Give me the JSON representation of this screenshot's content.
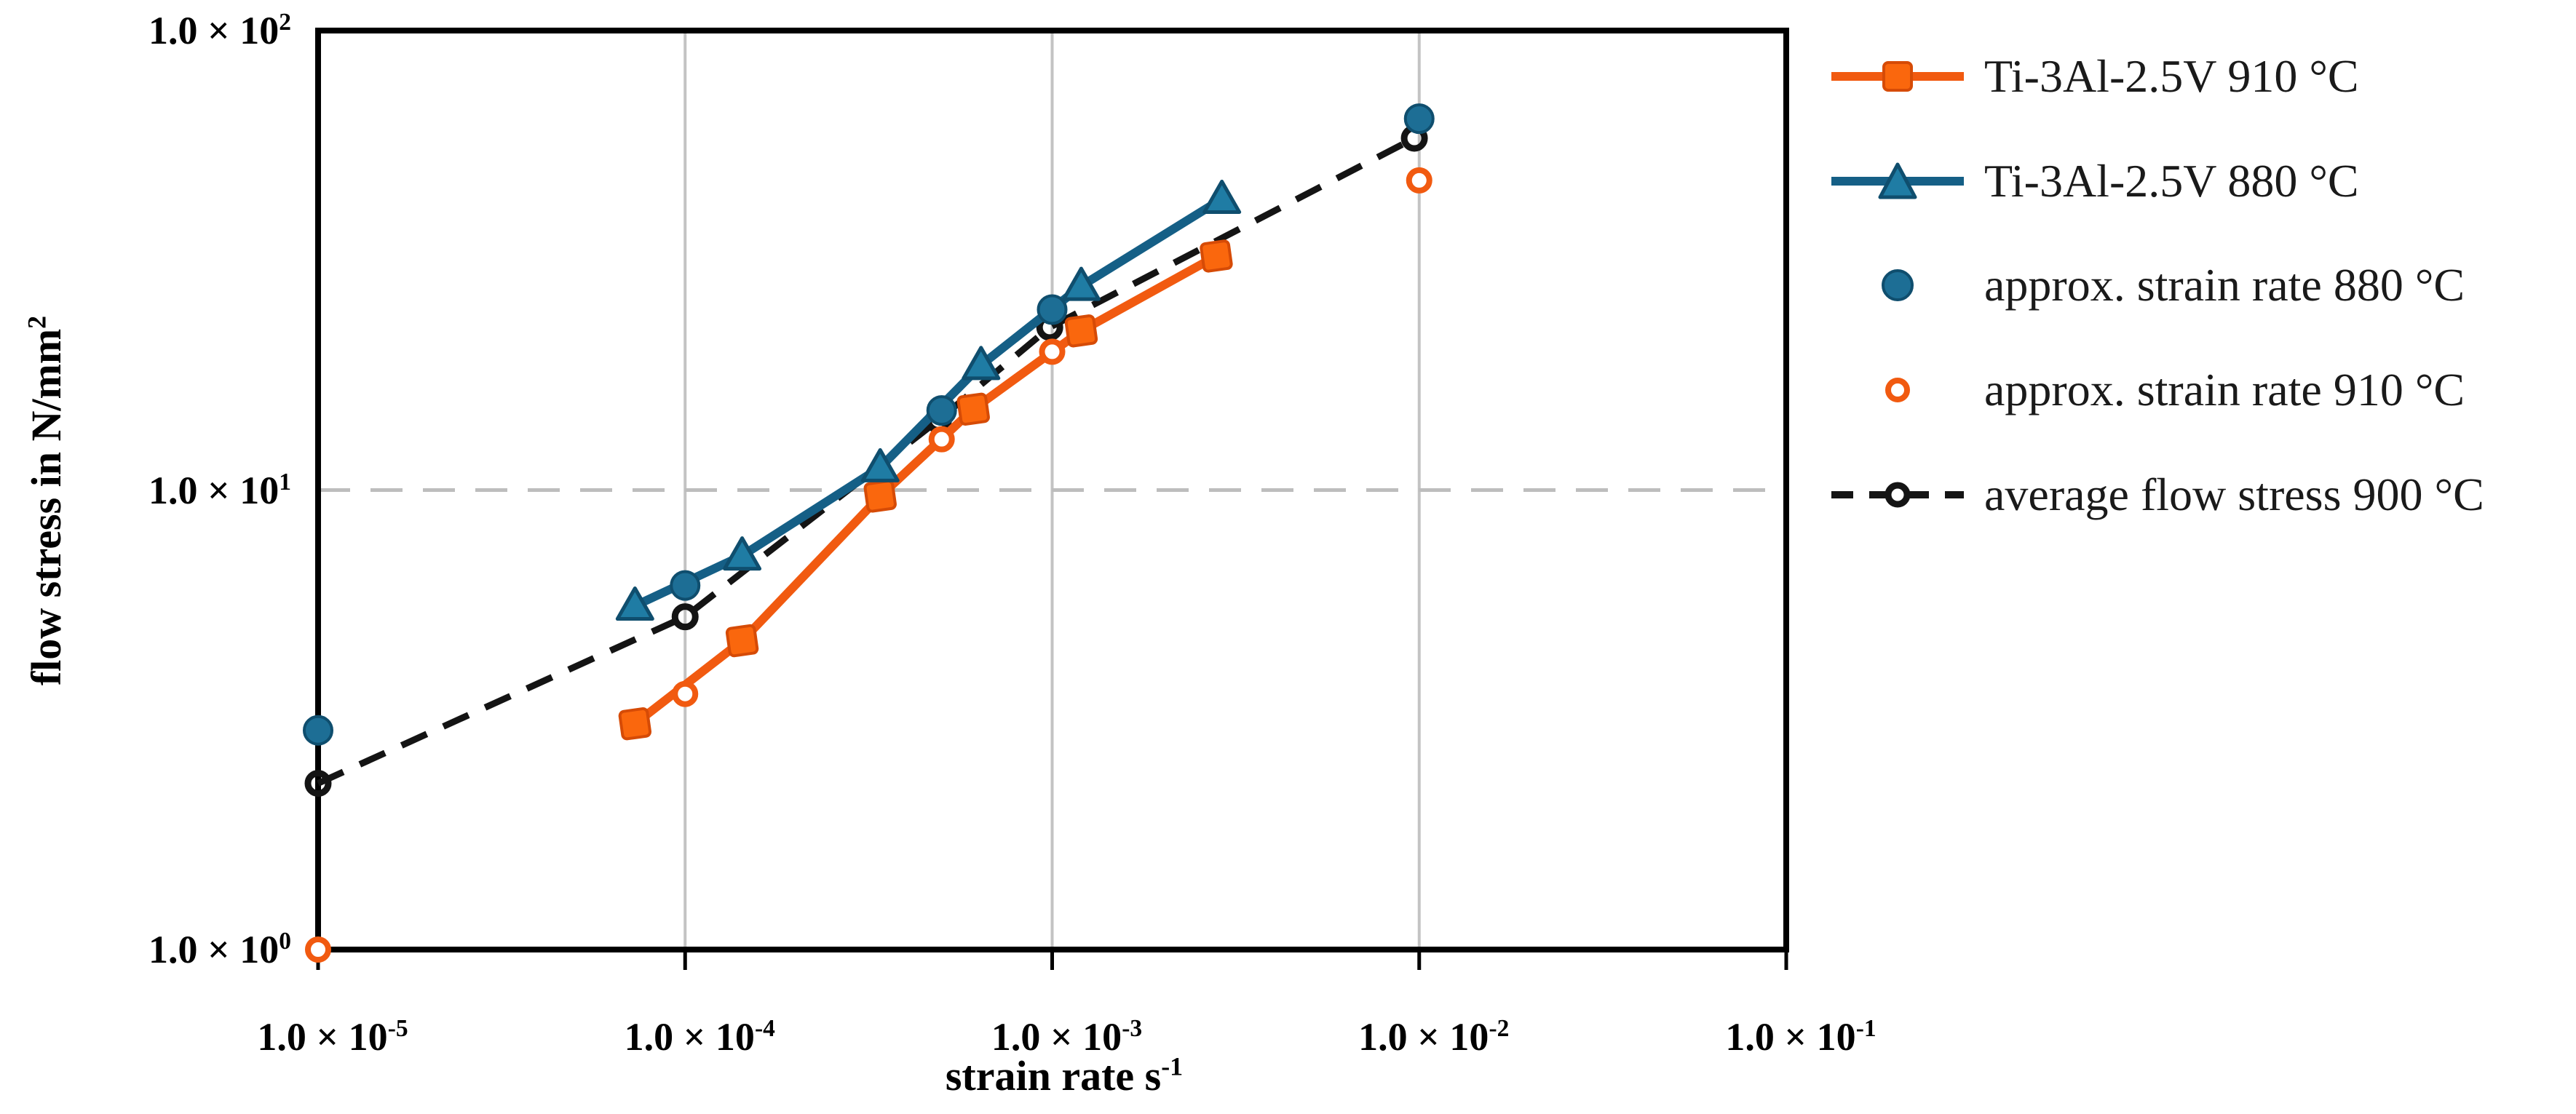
{
  "chart_data": {
    "type": "line+scatter",
    "scale": "log-log",
    "title": "",
    "xlabel": {
      "text": "strain rate s",
      "sup": "-1"
    },
    "ylabel": {
      "text": "flow stress in N/mm",
      "sup": "2"
    },
    "xlim": [
      1e-05,
      0.1
    ],
    "ylim": [
      1,
      100
    ],
    "x_ticks": [
      {
        "text": "1.0 × 10",
        "sup": "-5",
        "value": 1e-05
      },
      {
        "text": "1.0 × 10",
        "sup": "-4",
        "value": 0.0001
      },
      {
        "text": "1.0 × 10",
        "sup": "-3",
        "value": 0.001
      },
      {
        "text": "1.0 × 10",
        "sup": "-2",
        "value": 0.01
      },
      {
        "text": "1.0 × 10",
        "sup": "-1",
        "value": 0.1
      }
    ],
    "y_ticks": [
      {
        "text": "1.0 × 10",
        "sup": "0",
        "value": 1
      },
      {
        "text": "1.0 × 10",
        "sup": "1",
        "value": 10
      },
      {
        "text": "1.0 × 10",
        "sup": "2",
        "value": 100
      }
    ],
    "gridlines": {
      "x_solid": [
        0.0001,
        0.001,
        0.01
      ],
      "y_dashed": [
        10
      ]
    },
    "colors": {
      "orange": {
        "line": "#F15A10",
        "fill": "#FA670D",
        "dark": "#D64B06"
      },
      "blue": {
        "line": "#155F86",
        "fill": "#1F7CA4",
        "dot": "#1D6E95",
        "dark": "#0F4E6E"
      },
      "black": {
        "line": "#141414"
      },
      "grid_solid": "#C3C3C3",
      "grid_dashed": "#BDBDBD",
      "frame": "#000000"
    },
    "series": [
      {
        "name": "Ti-3Al-2.5V 910 °C",
        "style": "solid-line",
        "marker": "square",
        "color_key": "orange",
        "x": [
          7.3e-05,
          0.000143,
          0.00034,
          0.00061,
          0.0012,
          0.0028
        ],
        "y": [
          3.1,
          4.7,
          9.7,
          15.0,
          22.2,
          32.3
        ]
      },
      {
        "name": "Ti-3Al-2.5V 880 °C",
        "style": "solid-line",
        "marker": "triangle",
        "color_key": "blue",
        "x": [
          7.3e-05,
          0.000143,
          0.00034,
          0.00064,
          0.0012,
          0.0029
        ],
        "y": [
          5.6,
          7.2,
          11.2,
          18.7,
          27.8,
          43.0
        ]
      },
      {
        "name": "approx. strain rate 880 °C",
        "style": "scatter",
        "marker": "filled-circle",
        "color_key": "blue",
        "x": [
          1e-05,
          0.0001,
          0.0005,
          0.001,
          0.01
        ],
        "y": [
          3.0,
          6.2,
          14.9,
          24.7,
          64.3
        ]
      },
      {
        "name": "approx. strain rate 910 °C",
        "style": "scatter",
        "marker": "open-circle",
        "color_key": "orange",
        "x": [
          1e-05,
          0.0001,
          0.0005,
          0.001,
          0.01
        ],
        "y": [
          1.0,
          3.6,
          12.9,
          20.0,
          47.2
        ]
      },
      {
        "name": "average flow stress 900 °C",
        "style": "dashed-line",
        "marker": "open-circle",
        "color_key": "black",
        "x": [
          1e-05,
          0.0001,
          0.00049,
          0.000985,
          0.0097
        ],
        "y": [
          2.3,
          5.3,
          14.2,
          22.6,
          58.3
        ]
      }
    ],
    "legend_position": "right"
  }
}
